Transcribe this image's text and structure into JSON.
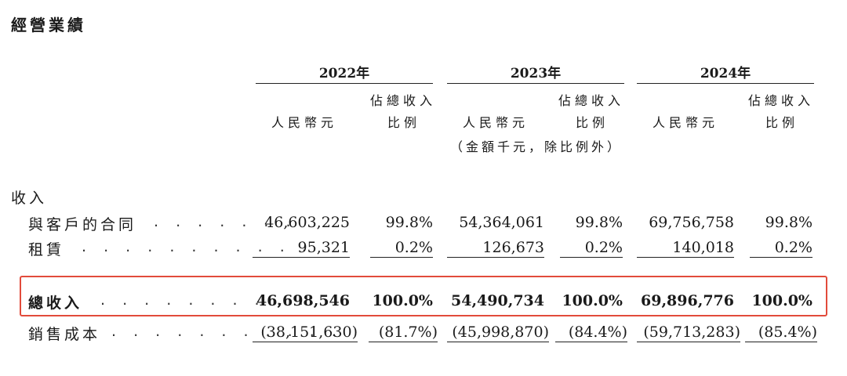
{
  "title": "經營業績",
  "years": [
    "2022年",
    "2023年",
    "2024年"
  ],
  "column_headers": {
    "currency": "人民幣元",
    "pct_line1": "佔總收入",
    "pct_line2": "比例"
  },
  "unit_note": "（金額千元，除比例外）",
  "section_label": "收入",
  "rows": [
    {
      "label": "與客戶的合同",
      "dots": ". . . . . . .",
      "values": [
        "46,603,225",
        "99.8%",
        "54,364,061",
        "99.8%",
        "69,756,758",
        "99.8%"
      ]
    },
    {
      "label": "租賃",
      "dots": ". . . . . . . . . . .",
      "values": [
        "95,321",
        "0.2%",
        "126,673",
        "0.2%",
        "140,018",
        "0.2%"
      ]
    },
    {
      "label": "總收入",
      "dots": ". . . . . . . . . .",
      "values": [
        "46,698,546",
        "100.0%",
        "54,490,734",
        "100.0%",
        "69,896,776",
        "100.0%"
      ]
    },
    {
      "label": "銷售成本",
      "dots": ". . . . . . . . . . .",
      "values": [
        "(38,151,630)",
        "(81.7%)",
        "(45,998,870)",
        "(84.4%)",
        "(59,713,283)",
        "(85.4%)"
      ]
    }
  ],
  "highlight_color": "#e24b3b"
}
